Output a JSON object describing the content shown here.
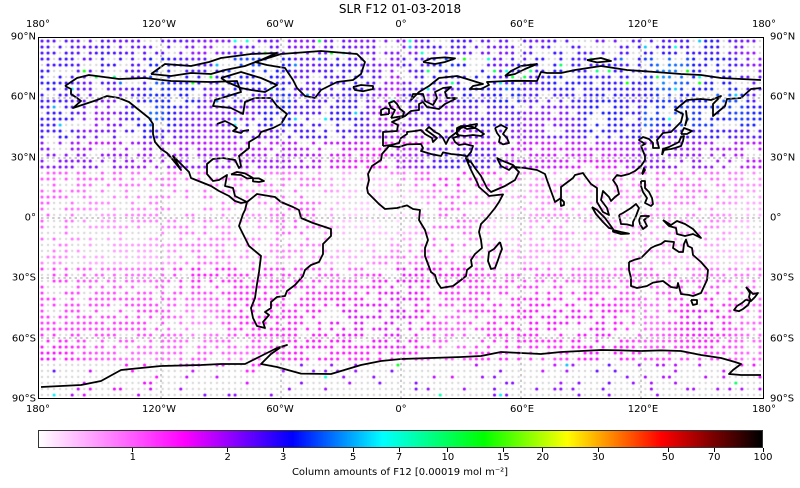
{
  "chart_data": {
    "type": "scatter",
    "subtype": "geographic-gridded-dot-map",
    "title": "SLR F12 01-03-2018",
    "projection": "PlateCarree",
    "extent": {
      "lon": [
        -180,
        180
      ],
      "lat": [
        -90,
        90
      ]
    },
    "grid": "dotted gridlines every 60° lon and 30° lat",
    "x_ticks": [
      "180°",
      "120°W",
      "60°W",
      "0°",
      "60°E",
      "120°E",
      "180°"
    ],
    "y_ticks": [
      "90°N",
      "60°N",
      "30°N",
      "0°",
      "30°S",
      "60°S",
      "90°S"
    ],
    "colorbar": {
      "scale": "log",
      "range": [
        0.5,
        100
      ],
      "ticks": [
        1,
        2,
        3,
        5,
        7,
        10,
        15,
        20,
        30,
        50,
        70,
        100
      ],
      "tick_labels": [
        "1",
        "2",
        "3",
        "5",
        "7",
        "10",
        "15",
        "20",
        "30",
        "50",
        "70",
        "100"
      ],
      "colormap_stops": [
        "#ffffff",
        "#ff00ff",
        "#0000ff",
        "#00ffff",
        "#00ff00",
        "#ffff00",
        "#ff0000",
        "#000000"
      ],
      "label": "Column amounts of F12 [0.00019 mol m⁻²]",
      "orientation": "horizontal"
    },
    "description": "Gridded ~3° dot map; most values 0.5–2 (light pink to magenta), higher values (2–4, purple/blue) over northern mid/high latitudes (Canada, Europe, Siberia, North Africa), sparse cyan/green outliers near the poles; gray dots mark missing data.",
    "regions_summary": [
      {
        "region": "Northern high latitudes (45–80°N)",
        "typical_value": "2–3",
        "color": "purple/dark blue"
      },
      {
        "region": "Tropics (30°S–30°N)",
        "typical_value": "0.6–1.2",
        "color": "light pink/white"
      },
      {
        "region": "Southern ocean (40–70°S)",
        "typical_value": "1–1.8",
        "color": "pink/magenta"
      },
      {
        "region": "Antarctica",
        "typical_value": "mostly no data, sparse 2–10",
        "color": "gray with scattered blue/cyan/green"
      }
    ]
  },
  "title": "SLR F12 01-03-2018",
  "axes": {
    "top_ticks": [
      "180°",
      "120°W",
      "60°W",
      "0°",
      "60°E",
      "120°E",
      "180°"
    ],
    "bottom_ticks": [
      "180°",
      "120°W",
      "60°W",
      "0°",
      "60°E",
      "120°E",
      "180°"
    ],
    "left_ticks": [
      "90°N",
      "60°N",
      "30°N",
      "0°",
      "30°S",
      "60°S",
      "90°S"
    ],
    "right_ticks": [
      "90°N",
      "60°N",
      "30°N",
      "0°",
      "30°S",
      "60°S",
      "90°S"
    ]
  },
  "colorbar": {
    "ticks": [
      "1",
      "2",
      "3",
      "5",
      "7",
      "10",
      "15",
      "20",
      "30",
      "50",
      "70",
      "100"
    ],
    "label": "Column amounts of F12 [0.00019 mol m⁻²]"
  }
}
